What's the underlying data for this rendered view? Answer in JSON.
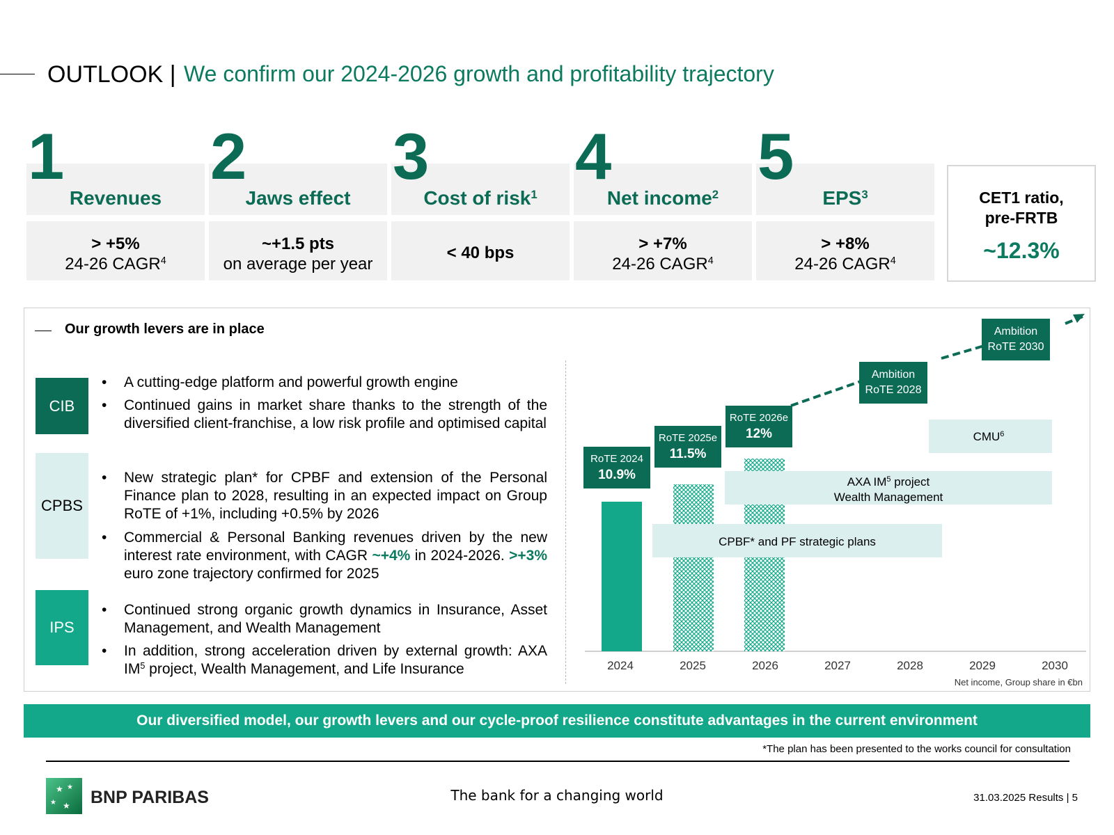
{
  "header": {
    "prefix": "OUTLOOK |",
    "title": "We confirm our 2024-2026 growth and profitability trajectory"
  },
  "kpis": [
    {
      "num": "1",
      "label": "Revenues",
      "sup": "",
      "value_bold": "> +5%",
      "value_rest": "24-26 CAGR",
      "value_sup": "4"
    },
    {
      "num": "2",
      "label": "Jaws effect",
      "sup": "",
      "value_bold": "~+1.5 pts",
      "value_rest": "on average per year",
      "value_sup": ""
    },
    {
      "num": "3",
      "label": "Cost of risk",
      "sup": "1",
      "value_bold": "< 40 bps",
      "value_rest": "",
      "value_sup": ""
    },
    {
      "num": "4",
      "label": "Net income",
      "sup": "2",
      "value_bold": "> +7%",
      "value_rest": "24-26 CAGR",
      "value_sup": "4"
    },
    {
      "num": "5",
      "label": "EPS",
      "sup": "3",
      "value_bold": "> +8%",
      "value_rest": "24-26 CAGR",
      "value_sup": "4"
    }
  ],
  "cet1": {
    "line1": "CET1 ratio,",
    "line2": "pre-FRTB",
    "value": "~12.3%"
  },
  "levers": {
    "title": "Our growth levers are in place",
    "bullet_char": "•",
    "segments": {
      "cib": "CIB",
      "cpbs": "CPBS",
      "ips": "IPS"
    },
    "cib": [
      "A cutting-edge platform and powerful growth engine",
      "Continued gains in market share thanks to the strength of the diversified client-franchise, a low risk profile and optimised capital"
    ],
    "cpbs1": "New strategic plan* for CPBF and extension of the Personal Finance plan to 2028, resulting in an expected impact on Group RoTE of +1%, including +0.5% by 2026",
    "cpbs2": {
      "a": "Commercial & Personal Banking revenues driven by the new interest rate environment, with CAGR ",
      "b": "~+4%",
      "c": " in 2024-2026. ",
      "d": ">+3%",
      "e": " euro zone trajectory confirmed for 2025"
    },
    "ips1": "Continued strong organic growth dynamics in Insurance, Asset Management, and Wealth Management",
    "ips2": {
      "a": "In addition, strong acceleration driven by external growth: AXA IM",
      "sup": "5",
      "b": " project, Wealth Management, and Life Insurance"
    }
  },
  "chart_data": {
    "type": "bar",
    "categories": [
      "2024",
      "2025",
      "2026",
      "2027",
      "2028",
      "2029",
      "2030"
    ],
    "rote": [
      {
        "label": "RoTE 2024",
        "value": "10.9%"
      },
      {
        "label": "RoTE 2025e",
        "value": "11.5%"
      },
      {
        "label": "RoTE 2026e",
        "value": "12%"
      }
    ],
    "ambition": [
      {
        "line1": "Ambition",
        "line2": "RoTE 2028"
      },
      {
        "line1": "Ambition",
        "line2": "RoTE 2030"
      }
    ],
    "levers": [
      {
        "text": "CPBF* and PF strategic plans"
      },
      {
        "line1": "AXA IM",
        "sup": "5",
        "line1b": " project",
        "line2": "Wealth Management"
      },
      {
        "text": "CMU",
        "sup": "6"
      }
    ],
    "note": "Net income, Group share in €bn",
    "colors": {
      "actual": "#00a58a",
      "dark": "#0b6b55",
      "lever_box": "#dcefef"
    }
  },
  "banner": "Our diversified model, our growth levers and our cycle-proof resilience constitute advantages in the current environment",
  "footnote": "*The plan has been presented to the works council for consultation",
  "footer": {
    "brand": "BNP PARIBAS",
    "tagline": "The bank for a changing world",
    "page": "31.03.2025 Results | 5"
  }
}
